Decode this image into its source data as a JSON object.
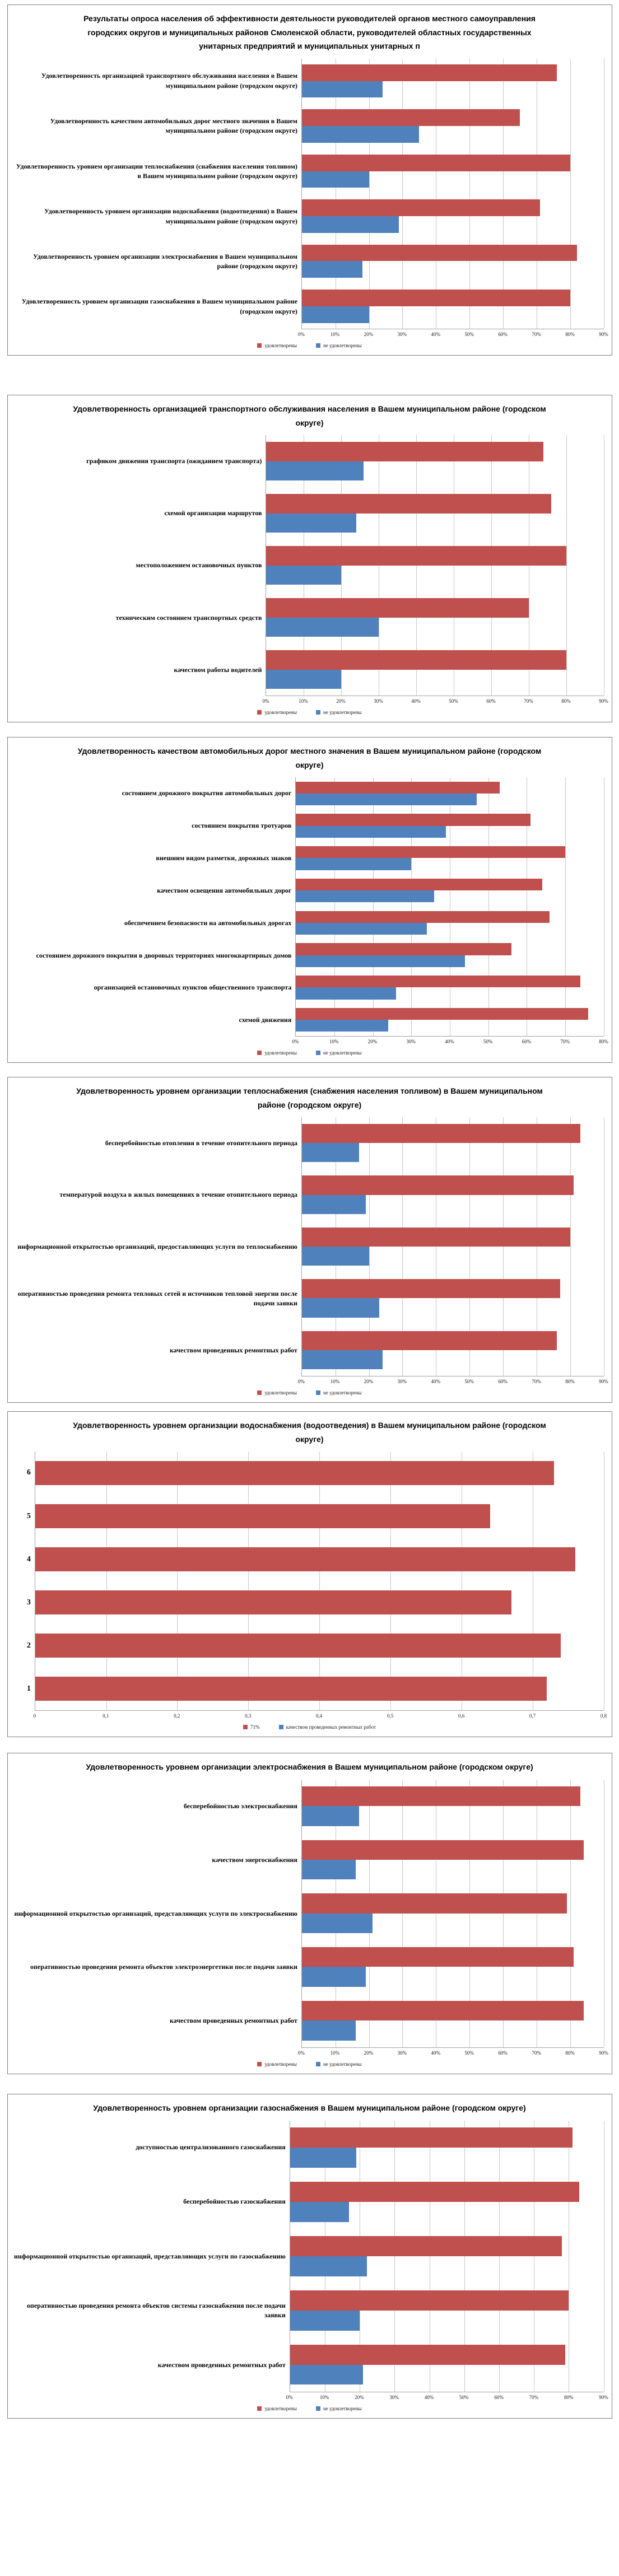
{
  "colors": {
    "satisfied": "#c0504d",
    "not_satisfied": "#4f81bd",
    "gridline": "#c8c8c8",
    "axis_line": "#a3a3a3",
    "panel_border": "#7f7f7f",
    "background": "#ffffff"
  },
  "chart_data": [
    {
      "id": "overview",
      "type": "bar",
      "orientation": "horizontal",
      "title": "Результаты опроса населения об эффективности деятельности руководителей органов местного самоуправления городских округов и муниципальных районов Смоленской области, руководителей областных государственных унитарных предприятий и муниципальных унитарных п",
      "categories": [
        "Удовлетворенность организацией транспортного обслуживания населения в Вашем муниципальном районе (городском округе)",
        "Удовлетворенность качеством автомобильных дорог местного значения в Вашем муниципальном районе (городском округе)",
        "Удовлетворенность уровнем организации теплоснабжения (снабжения населения топливом) в Вашем муниципальном районе (городском округе)",
        "Удовлетворенность уровнем организации водоснабжения (водоотведения) в Вашем муниципальном районе (городском округе)",
        "Удовлетворенность уровнем организации электроснабжения в Вашем муниципальном районе (городском округе)",
        "Удовлетворенность уровнем организации газоснабжения в Вашем муниципальном районе (городском округе)"
      ],
      "series": [
        {
          "name": "удовлетворены",
          "color": "satisfied",
          "values": [
            76,
            65,
            80,
            71,
            82,
            80
          ]
        },
        {
          "name": "не удовлетворены",
          "color": "not_satisfied",
          "values": [
            24,
            35,
            20,
            29,
            18,
            20
          ]
        }
      ],
      "axis": {
        "min": 0,
        "max": 90,
        "step": 10,
        "unit": "%",
        "tick_labels": [
          "0%",
          "10%",
          "20%",
          "30%",
          "40%",
          "50%",
          "60%",
          "70%",
          "80%",
          "90%"
        ]
      },
      "legend": [
        {
          "color": "satisfied",
          "label": "удовлетворены"
        },
        {
          "color": "not_satisfied",
          "label": "не удовлетворены"
        }
      ],
      "layout": {
        "label_col_pct": 49,
        "grid": true,
        "legend_position": "bottom-center"
      }
    },
    {
      "id": "transport",
      "type": "bar",
      "orientation": "horizontal",
      "title": "Удовлетворенность организацией транспортного обслуживания населения в Вашем муниципальном районе (городском округе)",
      "categories": [
        "графиком движения транспорта (ожиданием транспорта)",
        "схемой организации маршрутов",
        "местоположением остановочных пунктов",
        "техническим состоянием транспортных средств",
        "качеством работы водителей"
      ],
      "series": [
        {
          "name": "удовлетворены",
          "color": "satisfied",
          "values": [
            74,
            76,
            80,
            70,
            80
          ]
        },
        {
          "name": "не удовлетворены",
          "color": "not_satisfied",
          "values": [
            26,
            24,
            20,
            30,
            20
          ]
        }
      ],
      "axis": {
        "min": 0,
        "max": 90,
        "step": 10,
        "unit": "%",
        "tick_labels": [
          "0%",
          "10%",
          "20%",
          "30%",
          "40%",
          "50%",
          "60%",
          "70%",
          "80%",
          "90%"
        ]
      },
      "legend": [
        {
          "color": "satisfied",
          "label": "удовлетворены"
        },
        {
          "color": "not_satisfied",
          "label": "не удовлетворены"
        }
      ],
      "layout": {
        "label_col_pct": 43,
        "grid": true,
        "legend_position": "bottom-center"
      }
    },
    {
      "id": "roads",
      "type": "bar",
      "orientation": "horizontal",
      "title": "Удовлетворенность качеством автомобильных дорог местного значения в Вашем муниципальном районе (городском округе)",
      "categories": [
        "состоянием дорожного покрытия автомобильных дорог",
        "состоянием покрытия тротуаров",
        "внешним видом разметки, дорожных знаков",
        "качеством освещения автомобильных дорог",
        "обеспечением безопасности на автомобильных дорогах",
        "состоянием дорожного покрытия в дворовых территориях многоквартирных домов",
        "организацией остановочных пунктов общественного транспорта",
        "схемой движения"
      ],
      "series": [
        {
          "name": "удовлетворены",
          "color": "satisfied",
          "values": [
            53,
            61,
            70,
            64,
            66,
            56,
            74,
            76
          ]
        },
        {
          "name": "не удовлетворены",
          "color": "not_satisfied",
          "values": [
            47,
            39,
            30,
            36,
            34,
            44,
            26,
            24
          ]
        }
      ],
      "axis": {
        "min": 0,
        "max": 80,
        "step": 10,
        "unit": "%",
        "tick_labels": [
          "0%",
          "10%",
          "20%",
          "30%",
          "40%",
          "50%",
          "60%",
          "70%",
          "80%"
        ]
      },
      "legend": [
        {
          "color": "satisfied",
          "label": "удовлетворены"
        },
        {
          "color": "not_satisfied",
          "label": "не удовлетворены"
        }
      ],
      "layout": {
        "label_col_pct": 48,
        "grid": true,
        "legend_position": "bottom-center"
      }
    },
    {
      "id": "heating",
      "type": "bar",
      "orientation": "horizontal",
      "title": "Удовлетворенность уровнем организации теплоснабжения (снабжения населения топливом) в Вашем муниципальном районе (городском округе)",
      "categories": [
        "бесперебойностью отопления в течение отопительного периода",
        "температурой воздуха в жилых помещениях в течение отопительного периода",
        "информационной открытостью  организаций, предоставляющих услуги по теплоснабжению",
        "оперативностью проведения ремонта тепловых сетей и источников тепловой энергии после подачи заявки",
        "качеством проведенных ремонтных работ"
      ],
      "series": [
        {
          "name": "удовлетворены",
          "color": "satisfied",
          "values": [
            83,
            81,
            80,
            77,
            76
          ]
        },
        {
          "name": "не удовлетворены",
          "color": "not_satisfied",
          "values": [
            17,
            19,
            20,
            23,
            24
          ]
        }
      ],
      "axis": {
        "min": 0,
        "max": 90,
        "step": 10,
        "unit": "%",
        "tick_labels": [
          "0%",
          "10%",
          "20%",
          "30%",
          "40%",
          "50%",
          "60%",
          "70%",
          "80%",
          "90%"
        ]
      },
      "legend": [
        {
          "color": "satisfied",
          "label": "удовлетворены"
        },
        {
          "color": "not_satisfied",
          "label": "не удовлетворены"
        }
      ],
      "layout": {
        "label_col_pct": 49,
        "grid": true,
        "legend_position": "bottom-center"
      }
    },
    {
      "id": "water",
      "type": "bar",
      "orientation": "horizontal",
      "title": "Удовлетворенность уровнем организации водоснабжения (водоотведения) в Вашем муниципальном районе (городском округе)",
      "categories": [
        "6",
        "5",
        "4",
        "3",
        "2",
        "1"
      ],
      "series": [
        {
          "name": "71%",
          "color": "satisfied",
          "values": [
            0.73,
            0.64,
            0.76,
            0.67,
            0.74,
            0.72
          ]
        }
      ],
      "axis": {
        "min": 0,
        "max": 0.8,
        "step": 0.1,
        "unit": "",
        "tick_labels": [
          "0",
          "0,1",
          "0,2",
          "0,3",
          "0,4",
          "0,5",
          "0,6",
          "0,7",
          "0,8"
        ]
      },
      "legend": [
        {
          "color": "satisfied",
          "label": "71%"
        },
        {
          "color": "not_satisfied",
          "label": "качеством проведенных ремонтных работ"
        }
      ],
      "layout": {
        "label_col_pct": 4,
        "grid": true,
        "legend_position": "bottom-center"
      }
    },
    {
      "id": "electricity",
      "type": "bar",
      "orientation": "horizontal",
      "title": "Удовлетворенность уровнем организации электроснабжения в Вашем муниципальном районе (городском округе)",
      "categories": [
        "бесперебойностью электроснабжения",
        "качеством энергоснабжения",
        "информационной открытостью  организаций, представляющих услуги по электроснабжению",
        "оперативностью проведения ремонта объектов электроэнергетики после подачи заявки",
        "качеством проведенных ремонтных работ"
      ],
      "series": [
        {
          "name": "удовлетворены",
          "color": "satisfied",
          "values": [
            83,
            84,
            79,
            81,
            84
          ]
        },
        {
          "name": "не удовлетворены",
          "color": "not_satisfied",
          "values": [
            17,
            16,
            21,
            19,
            16
          ]
        }
      ],
      "axis": {
        "min": 0,
        "max": 90,
        "step": 10,
        "unit": "%",
        "tick_labels": [
          "0%",
          "10%",
          "20%",
          "30%",
          "40%",
          "50%",
          "60%",
          "70%",
          "80%",
          "90%"
        ]
      },
      "legend": [
        {
          "color": "satisfied",
          "label": "удовлетворены"
        },
        {
          "color": "not_satisfied",
          "label": "не удовлетворены"
        }
      ],
      "layout": {
        "label_col_pct": 49,
        "grid": true,
        "legend_position": "bottom-center"
      }
    },
    {
      "id": "gas",
      "type": "bar",
      "orientation": "horizontal",
      "title": "Удовлетворенность уровнем организации газоснабжения в Вашем муниципальном районе (городском округе)",
      "categories": [
        "доступностью централизованного газоснабжения",
        "бесперебойностью газоснабжения",
        "информационной открытостью  организаций, представляющих услуги по газоснабжению",
        "оперативностью проведения ремонта объектов системы газоснабжения после подачи заявки",
        "качеством проведенных ремонтных работ"
      ],
      "series": [
        {
          "name": "удовлетворены",
          "color": "satisfied",
          "values": [
            81,
            83,
            78,
            80,
            79
          ]
        },
        {
          "name": "не удовлетворены",
          "color": "not_satisfied",
          "values": [
            19,
            17,
            22,
            20,
            21
          ]
        }
      ],
      "axis": {
        "min": 0,
        "max": 90,
        "step": 10,
        "unit": "%",
        "tick_labels": [
          "0%",
          "10%",
          "20%",
          "30%",
          "40%",
          "50%",
          "60%",
          "70%",
          "80%",
          "90%"
        ]
      },
      "legend": [
        {
          "color": "satisfied",
          "label": "удовлетворены"
        },
        {
          "color": "not_satisfied",
          "label": "не удовлетворены"
        }
      ],
      "layout": {
        "label_col_pct": 47,
        "grid": true,
        "legend_position": "bottom-center"
      }
    }
  ]
}
